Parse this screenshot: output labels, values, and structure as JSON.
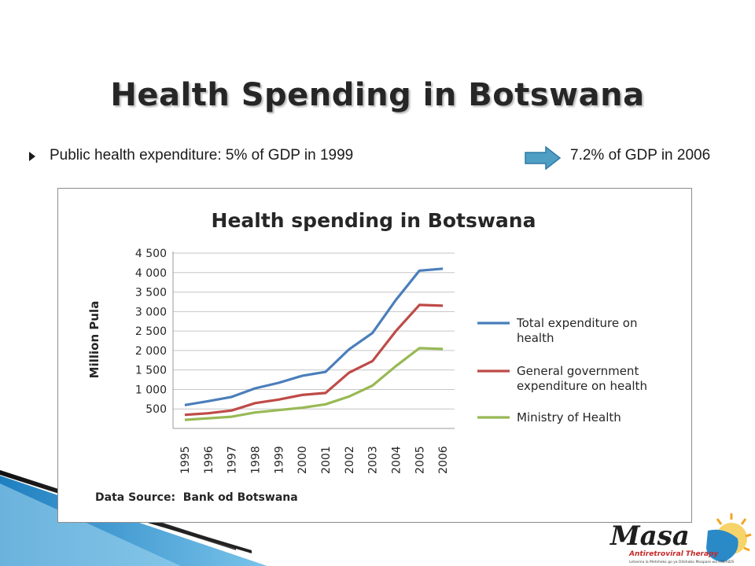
{
  "slide": {
    "title": "Health Spending in Botswana",
    "bullet_left": "Public health expenditure: 5% of GDP in 1999",
    "bullet_right": "7.2% of GDP in 2006"
  },
  "logo": {
    "name": "Masa",
    "tagline": "Antiretroviral Therapy",
    "motto": "Letsema la Metsheko go ya Ditshabo Moapare wa HIV/AIDS"
  },
  "colors": {
    "series": [
      "#4a7ebb",
      "#be4b48",
      "#98b954"
    ],
    "arrow": "#4f9ec4",
    "deco_blue": "#1f7fc0"
  },
  "chart_data": {
    "type": "line",
    "title": "Health spending in Botswana",
    "ylabel": "Million Pula",
    "xlabel": "",
    "x": [
      "1995",
      "1996",
      "1997",
      "1998",
      "1999",
      "2000",
      "2001",
      "2002",
      "2003",
      "2004",
      "2005",
      "2006"
    ],
    "ylim": [
      0,
      4500
    ],
    "yticks": [
      500,
      1000,
      1500,
      2000,
      2500,
      3000,
      3500,
      4000,
      4500
    ],
    "ytick_labels": [
      "500",
      "1 000",
      "1 500",
      "2 000",
      "2 500",
      "3 000",
      "3 500",
      "4 000",
      "4 500"
    ],
    "grid": true,
    "legend": "right",
    "source_note": "Data Source:  Bank od Botswana",
    "series": [
      {
        "name": "Total expenditure on health",
        "values": [
          600,
          700,
          810,
          1030,
          1170,
          1350,
          1450,
          2030,
          2450,
          3300,
          4050,
          4100
        ]
      },
      {
        "name": "General government expenditure on health",
        "values": [
          350,
          390,
          460,
          650,
          740,
          860,
          910,
          1430,
          1730,
          2500,
          3170,
          3150
        ]
      },
      {
        "name": "Ministry of Health",
        "values": [
          220,
          260,
          300,
          410,
          470,
          530,
          620,
          820,
          1100,
          1600,
          2060,
          2040
        ]
      }
    ]
  }
}
